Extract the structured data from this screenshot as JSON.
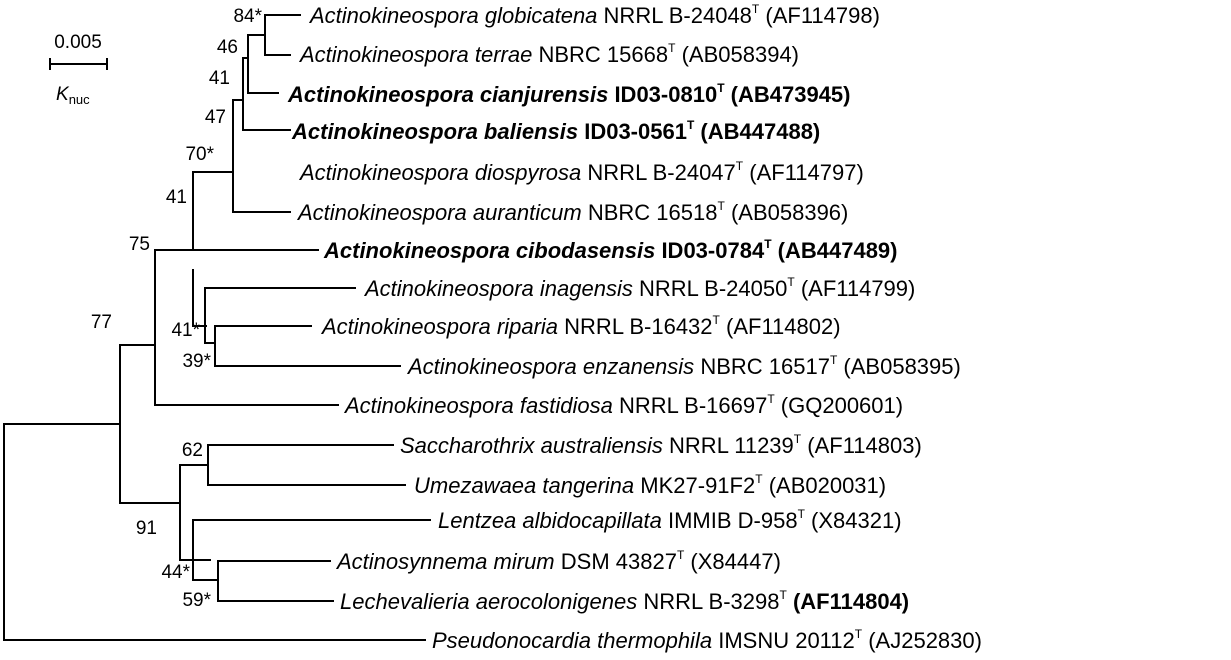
{
  "scale_bar": {
    "value": "0.005",
    "label_main": "K",
    "label_sub": "nuc"
  },
  "type_mark": "T",
  "taxa": [
    {
      "genus_species": "Actinokineospora globicatena",
      "strain": "NRRL B-24048",
      "accession": "(AF114798)",
      "bold": false
    },
    {
      "genus_species": "Actinokineospora terrae",
      "strain": "NBRC 15668",
      "accession": "(AB058394)",
      "bold": false
    },
    {
      "genus_species": "Actinokineospora cianjurensis",
      "strain": "ID03-0810",
      "accession": "(AB473945)",
      "bold": true
    },
    {
      "genus_species": "Actinokineospora baliensis",
      "strain": "ID03-0561",
      "accession": "(AB447488)",
      "bold": true
    },
    {
      "genus_species": "Actinokineospora diospyrosa",
      "strain": "NRRL B-24047",
      "accession": "(AF114797)",
      "bold": false
    },
    {
      "genus_species": "Actinokineospora auranticum",
      "strain": "NBRC 16518",
      "accession": "(AB058396)",
      "bold": false
    },
    {
      "genus_species": "Actinokineospora cibodasensis",
      "strain": "ID03-0784",
      "accession": "(AB447489)",
      "bold": true
    },
    {
      "genus_species": "Actinokineospora inagensis",
      "strain": "NRRL B-24050",
      "accession": "(AF114799)",
      "bold": false
    },
    {
      "genus_species": "Actinokineospora riparia",
      "strain": "NRRL B-16432",
      "accession": "(AF114802)",
      "bold": false
    },
    {
      "genus_species": "Actinokineospora enzanensis",
      "strain": "NBRC 16517",
      "accession": "(AB058395)",
      "bold": false
    },
    {
      "genus_species": "Actinokineospora fastidiosa",
      "strain": "NRRL B-16697",
      "accession": "(GQ200601)",
      "bold": false
    },
    {
      "genus_species": "Saccharothrix australiensis",
      "strain": "NRRL 11239",
      "accession": "(AF114803)",
      "bold": false
    },
    {
      "genus_species": "Umezawaea tangerina",
      "strain": "MK27-91F2",
      "accession": "(AB020031)",
      "bold": false
    },
    {
      "genus_species": "Lentzea albidocapillata",
      "strain": "IMMIB D-958",
      "accession": "(X84321)",
      "bold": false
    },
    {
      "genus_species": "Actinosynnema mirum",
      "strain": "DSM 43827",
      "accession": "(X84447)",
      "bold": false
    },
    {
      "genus_species": "Lechevalieria aerocolonigenes",
      "strain": "NRRL B-3298",
      "accession": "(AF114804)",
      "bold": false,
      "accession_bold": true
    },
    {
      "genus_species": "Pseudonocardia thermophila",
      "strain": "IMSNU 20112",
      "accession": "(AJ252830)",
      "bold": false
    }
  ],
  "bootstrap": [
    "84*",
    "46",
    "41",
    "47",
    "70*",
    "41",
    "75",
    "77",
    "41*",
    "39*",
    "62",
    "91",
    "44*",
    "59*"
  ]
}
